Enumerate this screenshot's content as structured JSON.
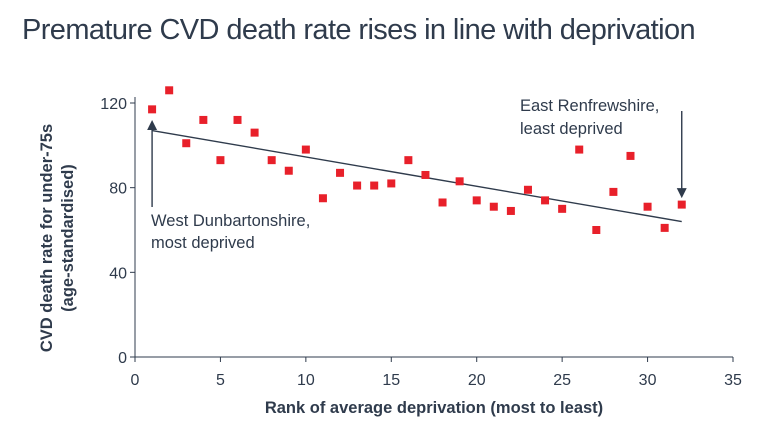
{
  "chart_data": {
    "type": "scatter",
    "title": "Premature CVD death rate rises in line with deprivation",
    "xlabel": "Rank of average deprivation (most to least)",
    "ylabel_lines": [
      "CVD death rate for under-75s",
      "(age-standardised)"
    ],
    "xlim": [
      0,
      35
    ],
    "ylim": [
      0,
      120
    ],
    "xticks": [
      "0",
      "5",
      "10",
      "15",
      "20",
      "25",
      "30",
      "35"
    ],
    "yticks": [
      "0",
      "40",
      "80",
      "120"
    ],
    "grid": false,
    "point_color": "#e8202a",
    "line_color": "#2f3b4c",
    "points": [
      {
        "x": 1,
        "y": 117
      },
      {
        "x": 2,
        "y": 126
      },
      {
        "x": 3,
        "y": 101
      },
      {
        "x": 4,
        "y": 112
      },
      {
        "x": 5,
        "y": 93
      },
      {
        "x": 6,
        "y": 112
      },
      {
        "x": 7,
        "y": 106
      },
      {
        "x": 8,
        "y": 93
      },
      {
        "x": 9,
        "y": 88
      },
      {
        "x": 10,
        "y": 98
      },
      {
        "x": 11,
        "y": 75
      },
      {
        "x": 12,
        "y": 87
      },
      {
        "x": 13,
        "y": 81
      },
      {
        "x": 14,
        "y": 81
      },
      {
        "x": 15,
        "y": 82
      },
      {
        "x": 16,
        "y": 93
      },
      {
        "x": 17,
        "y": 86
      },
      {
        "x": 18,
        "y": 73
      },
      {
        "x": 19,
        "y": 83
      },
      {
        "x": 20,
        "y": 74
      },
      {
        "x": 21,
        "y": 71
      },
      {
        "x": 22,
        "y": 69
      },
      {
        "x": 23,
        "y": 79
      },
      {
        "x": 24,
        "y": 74
      },
      {
        "x": 25,
        "y": 70
      },
      {
        "x": 26,
        "y": 98
      },
      {
        "x": 27,
        "y": 60
      },
      {
        "x": 28,
        "y": 78
      },
      {
        "x": 29,
        "y": 95
      },
      {
        "x": 30,
        "y": 71
      },
      {
        "x": 31,
        "y": 61
      },
      {
        "x": 32,
        "y": 72
      }
    ],
    "trendline": {
      "x": [
        1,
        32
      ],
      "y": [
        107,
        64
      ]
    },
    "annotations": [
      {
        "lines": [
          "West Dunbartonshire,",
          "most deprived"
        ],
        "arrow_to": {
          "x": 1,
          "y": 111
        }
      },
      {
        "lines": [
          "East Renfrewshire,",
          "least deprived"
        ],
        "arrow_to": {
          "x": 32,
          "y": 76
        }
      }
    ]
  }
}
